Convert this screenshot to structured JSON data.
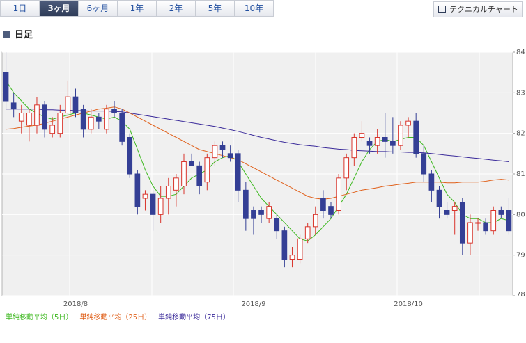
{
  "tabs": [
    "1日",
    "3ヶ月",
    "6ヶ月",
    "1年",
    "2年",
    "5年",
    "10年"
  ],
  "button": "テクニカルチャート",
  "section_title": "日足",
  "chart_data": {
    "type": "candlestick",
    "categories": [
      null,
      null,
      null,
      null,
      null,
      null,
      null,
      null,
      null,
      "2018/8",
      null,
      null,
      null,
      null,
      null,
      null,
      null,
      null,
      null,
      null,
      null,
      null,
      null,
      null,
      null,
      null,
      null,
      null,
      null,
      null,
      null,
      null,
      "2018/9",
      null,
      null,
      null,
      null,
      null,
      null,
      null,
      null,
      null,
      null,
      null,
      null,
      null,
      null,
      null,
      null,
      null,
      null,
      null,
      "2018/10",
      null,
      null,
      null,
      null,
      null,
      null,
      null,
      null,
      null,
      null,
      null,
      null,
      null
    ],
    "open": [
      83.5,
      82.75,
      82.3,
      82.2,
      82.2,
      82.7,
      82.0,
      82.0,
      82.5,
      82.9,
      82.6,
      82.1,
      82.4,
      82.1,
      82.6,
      82.5,
      81.9,
      81.0,
      80.4,
      80.5,
      80.0,
      80.4,
      80.6,
      80.7,
      81.3,
      81.2,
      80.8,
      81.4,
      81.7,
      81.5,
      81.5,
      80.6,
      80.1,
      80.1,
      79.9,
      79.9,
      79.6,
      78.9,
      78.9,
      79.4,
      79.7,
      80.4,
      80.2,
      80.1,
      80.9,
      81.4,
      81.9,
      81.8,
      81.7,
      81.9,
      81.8,
      81.7,
      82.2,
      82.3,
      81.5,
      81.0,
      80.6,
      80.1,
      80.1,
      80.3,
      79.3,
      79.8,
      79.8,
      79.6,
      80.1,
      80.1
    ],
    "high": [
      84.0,
      83.0,
      82.7,
      82.6,
      82.9,
      82.8,
      82.4,
      82.7,
      83.3,
      83.1,
      82.7,
      82.6,
      82.5,
      82.7,
      82.8,
      82.6,
      82.0,
      81.1,
      80.6,
      80.6,
      80.7,
      80.9,
      81.0,
      81.5,
      81.5,
      81.3,
      81.5,
      81.8,
      81.8,
      81.7,
      81.6,
      80.8,
      80.2,
      80.2,
      80.3,
      80.0,
      79.7,
      79.2,
      79.5,
      79.8,
      80.2,
      80.6,
      80.3,
      81.0,
      81.5,
      82.0,
      82.3,
      81.9,
      82.1,
      82.5,
      82.4,
      82.3,
      82.4,
      82.5,
      81.7,
      81.1,
      80.7,
      80.3,
      80.3,
      80.4,
      80.0,
      79.9,
      79.9,
      80.2,
      80.2,
      80.4
    ],
    "low": [
      82.6,
      82.4,
      82.0,
      81.8,
      82.0,
      81.9,
      81.9,
      81.9,
      82.4,
      82.4,
      81.9,
      82.0,
      82.1,
      82.0,
      82.4,
      81.7,
      80.9,
      80.0,
      80.1,
      79.6,
      79.8,
      80.0,
      80.2,
      80.5,
      81.2,
      80.5,
      80.6,
      81.2,
      81.4,
      81.3,
      80.3,
      79.6,
      79.5,
      79.8,
      79.8,
      79.4,
      78.7,
      78.7,
      78.8,
      79.3,
      79.5,
      79.9,
      79.9,
      80.0,
      80.6,
      81.2,
      81.8,
      81.5,
      81.5,
      81.4,
      81.5,
      81.6,
      81.9,
      81.4,
      80.8,
      80.3,
      79.9,
      79.9,
      79.5,
      79.0,
      79.0,
      79.6,
      79.5,
      79.5,
      79.9,
      79.5
    ],
    "close": [
      82.8,
      82.6,
      82.5,
      82.5,
      82.7,
      82.1,
      82.2,
      82.5,
      82.9,
      82.5,
      82.1,
      82.4,
      82.3,
      82.6,
      82.5,
      81.8,
      81.0,
      80.2,
      80.5,
      80.0,
      80.4,
      80.7,
      80.9,
      81.3,
      81.2,
      80.7,
      81.4,
      81.7,
      81.6,
      81.4,
      80.6,
      79.9,
      79.9,
      80.0,
      80.2,
      79.6,
      78.9,
      79.0,
      79.4,
      79.7,
      80.0,
      80.1,
      80.0,
      80.9,
      81.4,
      81.9,
      82.0,
      81.7,
      81.9,
      81.8,
      81.7,
      82.2,
      82.3,
      81.5,
      81.0,
      80.6,
      80.2,
      80.0,
      80.2,
      79.3,
      79.8,
      79.8,
      79.6,
      80.1,
      80.0,
      79.6
    ],
    "up_color": "#d9342b",
    "down_color": "#343f95",
    "series": [
      {
        "name": "単純移動平均（5日）",
        "color": "#3cb81e",
        "values": [
          83.3,
          83.0,
          82.8,
          82.6,
          82.5,
          82.4,
          82.35,
          82.4,
          82.45,
          82.5,
          82.5,
          82.45,
          82.4,
          82.35,
          82.4,
          82.3,
          82.1,
          81.6,
          81.1,
          80.7,
          80.45,
          80.45,
          80.5,
          80.7,
          80.9,
          81.0,
          81.1,
          81.3,
          81.4,
          81.45,
          81.3,
          81.0,
          80.7,
          80.4,
          80.2,
          80.0,
          79.8,
          79.6,
          79.4,
          79.35,
          79.5,
          79.7,
          79.9,
          80.2,
          80.5,
          80.9,
          81.3,
          81.6,
          81.8,
          81.85,
          81.8,
          81.85,
          81.9,
          81.9,
          81.7,
          81.3,
          80.9,
          80.5,
          80.3,
          80.0,
          79.9,
          79.9,
          79.8,
          79.8,
          79.9,
          79.85
        ]
      },
      {
        "name": "単純移動平均（25日）",
        "color": "#e0601a",
        "values": [
          82.1,
          82.12,
          82.15,
          82.18,
          82.2,
          82.25,
          82.3,
          82.35,
          82.4,
          82.45,
          82.5,
          82.55,
          82.6,
          82.62,
          82.65,
          82.6,
          82.5,
          82.4,
          82.3,
          82.2,
          82.1,
          82.0,
          81.9,
          81.8,
          81.7,
          81.6,
          81.55,
          81.5,
          81.45,
          81.4,
          81.35,
          81.25,
          81.15,
          81.05,
          80.95,
          80.85,
          80.75,
          80.65,
          80.55,
          80.45,
          80.4,
          80.38,
          80.4,
          80.45,
          80.5,
          80.55,
          80.6,
          80.63,
          80.66,
          80.7,
          80.72,
          80.75,
          80.77,
          80.8,
          80.8,
          80.8,
          80.8,
          80.78,
          80.78,
          80.8,
          80.8,
          80.8,
          80.82,
          80.85,
          80.87,
          80.85
        ]
      },
      {
        "name": "単純移動平均（75日）",
        "color": "#3a2a9a",
        "values": [
          82.6,
          82.6,
          82.6,
          82.6,
          82.6,
          82.58,
          82.58,
          82.57,
          82.57,
          82.56,
          82.56,
          82.55,
          82.55,
          82.55,
          82.54,
          82.53,
          82.5,
          82.47,
          82.44,
          82.41,
          82.38,
          82.35,
          82.32,
          82.29,
          82.26,
          82.23,
          82.2,
          82.17,
          82.13,
          82.09,
          82.05,
          82.0,
          81.95,
          81.9,
          81.86,
          81.82,
          81.78,
          81.75,
          81.72,
          81.7,
          81.68,
          81.65,
          81.63,
          81.61,
          81.6,
          81.58,
          81.57,
          81.56,
          81.55,
          81.55,
          81.54,
          81.54,
          81.53,
          81.53,
          81.52,
          81.5,
          81.48,
          81.46,
          81.44,
          81.42,
          81.4,
          81.38,
          81.36,
          81.34,
          81.32,
          81.3
        ]
      }
    ],
    "ylim": [
      78,
      84
    ],
    "yticks": [
      78,
      79,
      80,
      81,
      82,
      83,
      84
    ],
    "grid": true
  }
}
